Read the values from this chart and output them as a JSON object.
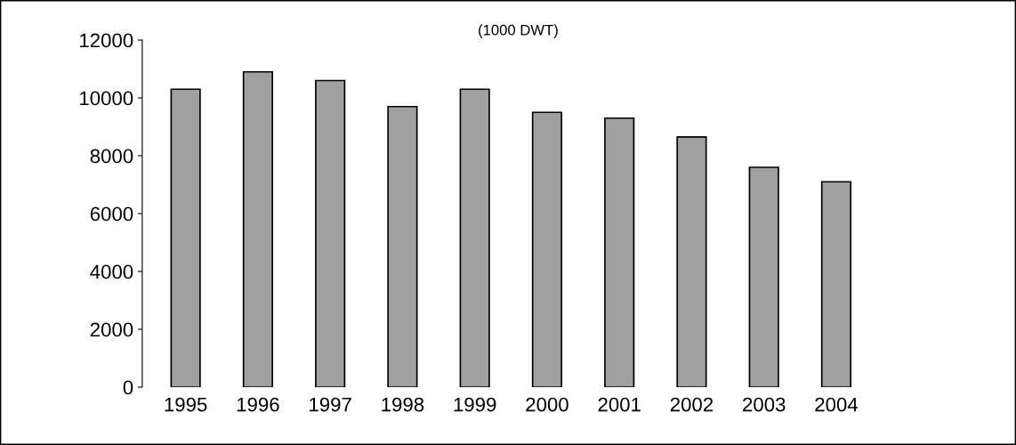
{
  "chart_data": {
    "type": "bar",
    "title": "(1000 DWT)",
    "categories": [
      "1995",
      "1996",
      "1997",
      "1998",
      "1999",
      "2000",
      "2001",
      "2002",
      "2003",
      "2004"
    ],
    "values": [
      10300,
      10900,
      10600,
      9700,
      10300,
      9500,
      9300,
      8650,
      7600,
      7100
    ],
    "color": "#a0a0a0",
    "ylim": [
      0,
      12000
    ],
    "yticks": [
      0,
      2000,
      4000,
      6000,
      8000,
      10000,
      12000
    ],
    "grid": false,
    "legend": false
  }
}
